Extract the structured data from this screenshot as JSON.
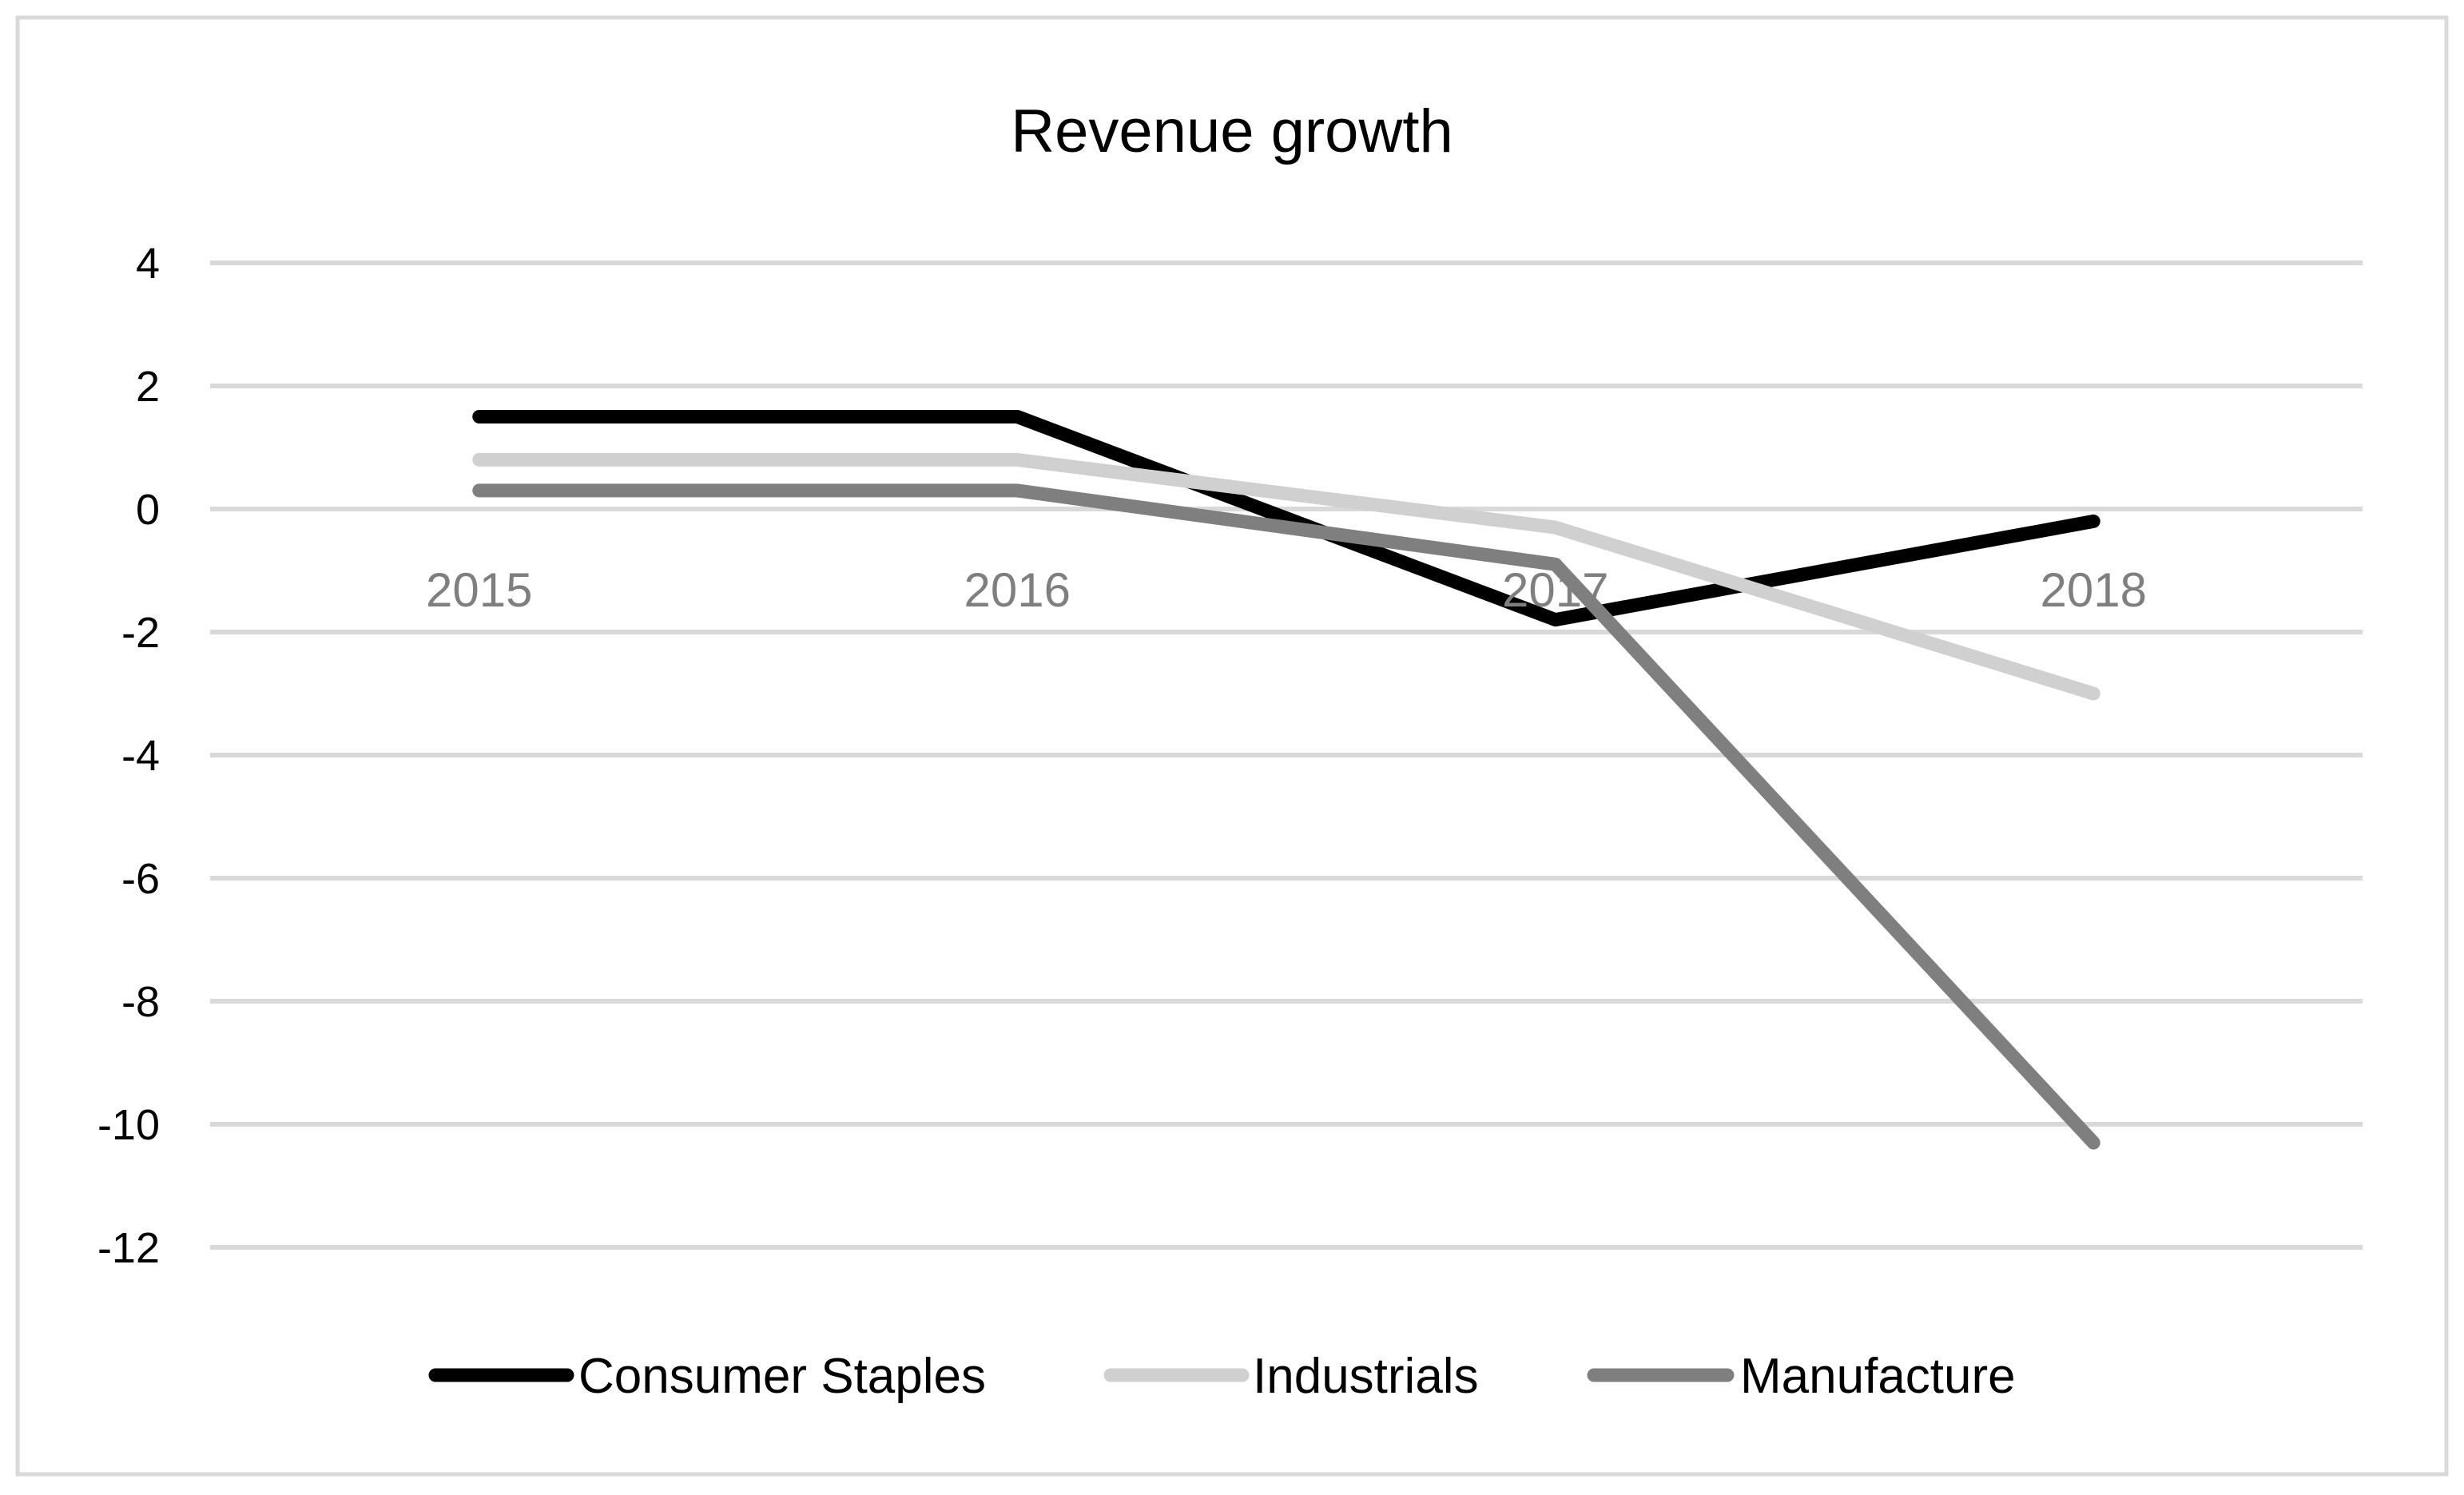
{
  "chart_data": {
    "type": "line",
    "title": "Revenue growth",
    "xlabel": "",
    "ylabel": "",
    "categories": [
      "2015",
      "2016",
      "2017",
      "2018"
    ],
    "ylim": [
      -12,
      4
    ],
    "yticks": [
      4,
      2,
      0,
      -2,
      -4,
      -6,
      -8,
      -10,
      -12
    ],
    "grid": true,
    "legend_position": "bottom",
    "series": [
      {
        "name": "Consumer Staples",
        "color": "#000000",
        "values": [
          1.5,
          1.5,
          -1.8,
          -0.2
        ]
      },
      {
        "name": "Industrials",
        "color": "#d0d0d0",
        "values": [
          0.8,
          0.8,
          -0.3,
          -3.0
        ]
      },
      {
        "name": "Manufacture",
        "color": "#7f7f7f",
        "values": [
          0.3,
          0.3,
          -0.9,
          -10.3
        ]
      }
    ]
  }
}
